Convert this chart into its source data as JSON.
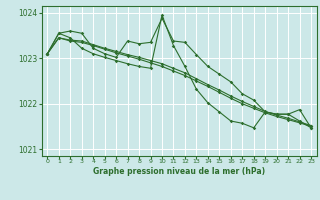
{
  "background_color": "#cce8e8",
  "grid_color": "#ffffff",
  "line_color": "#2d6e2d",
  "title": "Graphe pression niveau de la mer (hPa)",
  "ylim": [
    1020.85,
    1024.15
  ],
  "yticks": [
    1021,
    1022,
    1023,
    1024
  ],
  "xlim": [
    -0.5,
    23.5
  ],
  "xticks": [
    0,
    1,
    2,
    3,
    4,
    5,
    6,
    7,
    8,
    9,
    10,
    11,
    12,
    13,
    14,
    15,
    16,
    17,
    18,
    19,
    20,
    21,
    22,
    23
  ],
  "series": [
    {
      "x": [
        0,
        1,
        2,
        3,
        4,
        5,
        6,
        7,
        8,
        9,
        10,
        11,
        12,
        13,
        14,
        15,
        16,
        17,
        18,
        19,
        20,
        21,
        22,
        23
      ],
      "y": [
        1023.1,
        1023.45,
        1023.38,
        1023.35,
        1023.28,
        1023.2,
        1023.12,
        1023.05,
        1022.98,
        1022.9,
        1022.82,
        1022.72,
        1022.62,
        1022.5,
        1022.38,
        1022.25,
        1022.12,
        1022.0,
        1021.9,
        1021.8,
        1021.72,
        1021.65,
        1021.58,
        1021.5
      ]
    },
    {
      "x": [
        0,
        1,
        2,
        3,
        4,
        5,
        6,
        7,
        8,
        9,
        10,
        11,
        12,
        13,
        14,
        15,
        16,
        17,
        18,
        19,
        20,
        21,
        22,
        23
      ],
      "y": [
        1023.1,
        1023.45,
        1023.4,
        1023.38,
        1023.3,
        1023.22,
        1023.15,
        1023.08,
        1023.02,
        1022.95,
        1022.88,
        1022.78,
        1022.68,
        1022.55,
        1022.42,
        1022.3,
        1022.17,
        1022.05,
        1021.94,
        1021.83,
        1021.75,
        1021.68,
        1021.6,
        1021.52
      ]
    },
    {
      "x": [
        0,
        1,
        2,
        3,
        4,
        5,
        6,
        7,
        8,
        9,
        10,
        11,
        12,
        13,
        14,
        15,
        16,
        17,
        18,
        19,
        20,
        21,
        22,
        23
      ],
      "y": [
        1023.1,
        1023.55,
        1023.6,
        1023.55,
        1023.22,
        1023.1,
        1023.02,
        1023.38,
        1023.32,
        1023.35,
        1023.88,
        1023.38,
        1023.35,
        1023.08,
        1022.82,
        1022.65,
        1022.48,
        1022.22,
        1022.08,
        1021.82,
        1021.77,
        1021.77,
        1021.62,
        1021.47
      ]
    },
    {
      "x": [
        0,
        1,
        2,
        3,
        4,
        5,
        6,
        7,
        8,
        9,
        10,
        11,
        12,
        13,
        14,
        15,
        16,
        17,
        18,
        19,
        20,
        21,
        22,
        23
      ],
      "y": [
        1023.1,
        1023.55,
        1023.45,
        1023.22,
        1023.1,
        1023.02,
        1022.95,
        1022.88,
        1022.82,
        1022.78,
        1023.95,
        1023.28,
        1022.82,
        1022.32,
        1022.02,
        1021.82,
        1021.62,
        1021.57,
        1021.47,
        1021.82,
        1021.77,
        1021.77,
        1021.87,
        1021.47
      ]
    }
  ]
}
